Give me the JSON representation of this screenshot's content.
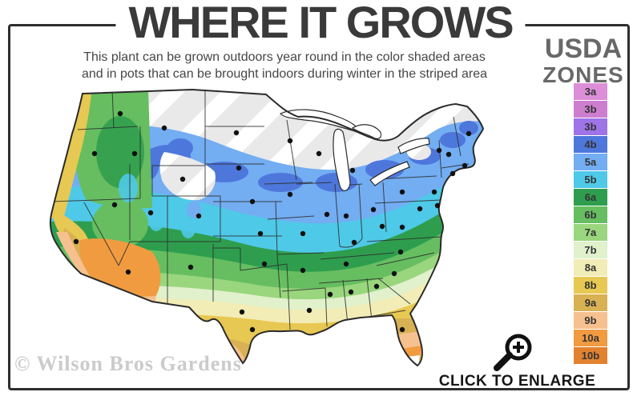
{
  "header": {
    "title": "WHERE IT GROWS",
    "subtitle_line1": "This plant can be grown outdoors year round in the color shaded areas",
    "subtitle_line2": "and in pots that can be brought indoors during winter in the striped area"
  },
  "legend": {
    "title_line1": "USDA",
    "title_line2": "ZONES",
    "zones": [
      {
        "label": "3a",
        "color": "#DC8FD8"
      },
      {
        "label": "3b",
        "color": "#CD7ECF"
      },
      {
        "label": "3b",
        "color": "#9E74E8"
      },
      {
        "label": "4b",
        "color": "#4E77DC"
      },
      {
        "label": "5a",
        "color": "#73ADF2"
      },
      {
        "label": "5b",
        "color": "#4FC9E8"
      },
      {
        "label": "6a",
        "color": "#2E9E4E"
      },
      {
        "label": "6b",
        "color": "#66BE60"
      },
      {
        "label": "7a",
        "color": "#99D67D"
      },
      {
        "label": "7b",
        "color": "#E0F1CB"
      },
      {
        "label": "8a",
        "color": "#F2ECB6"
      },
      {
        "label": "8b",
        "color": "#E7C852"
      },
      {
        "label": "9a",
        "color": "#D8B154"
      },
      {
        "label": "9b",
        "color": "#F6C18F"
      },
      {
        "label": "10a",
        "color": "#F19B41"
      },
      {
        "label": "10b",
        "color": "#E28230"
      }
    ]
  },
  "map": {
    "colors": {
      "striped_area_base": "#E9E9E9",
      "stripe_overlay": "#FFFFFF",
      "state_border": "#2B2B2B",
      "dot": "#111111",
      "water": "#FFFFFF"
    }
  },
  "footer": {
    "watermark": "© Wilson Bros Gardens",
    "enlarge_label": "CLICK TO ENLARGE"
  }
}
